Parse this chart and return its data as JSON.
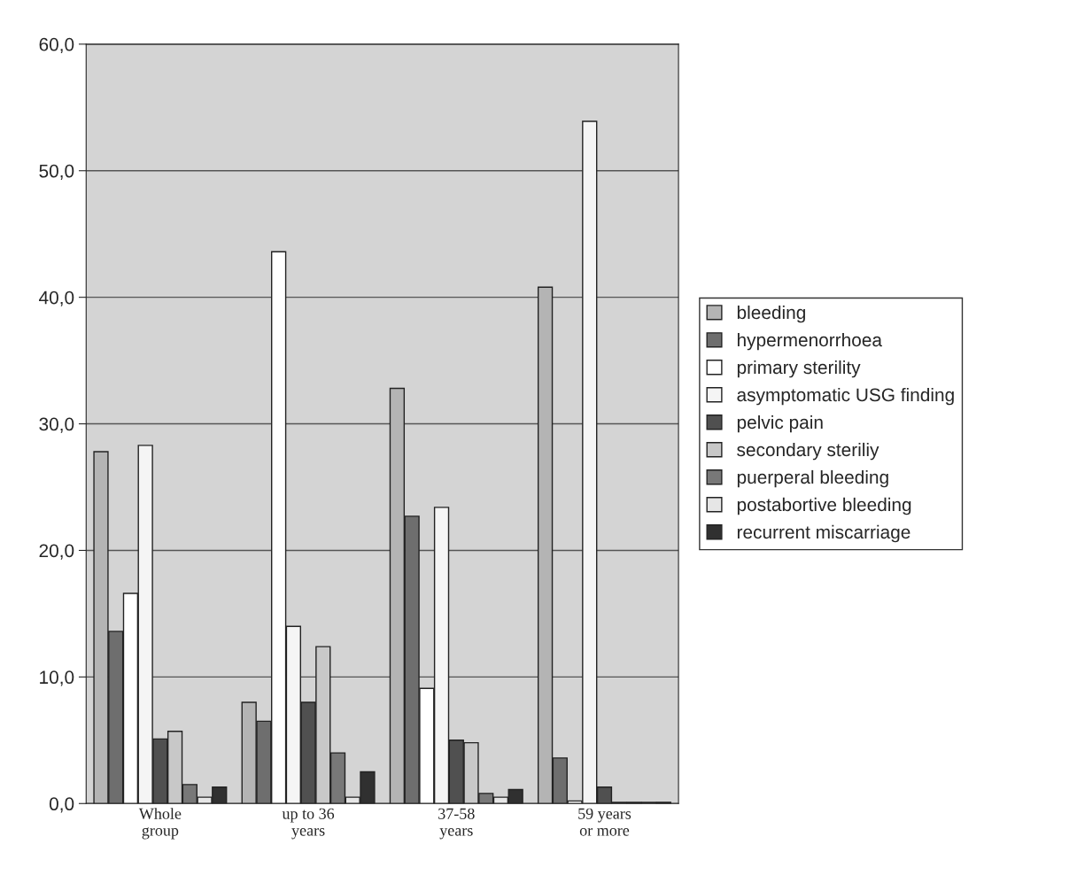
{
  "chart_data": {
    "type": "bar",
    "categories": [
      "Whole\ngroup",
      "up to 36\nyears",
      "37-58\nyears",
      "59 years\nor more"
    ],
    "series": [
      {
        "name": "bleeding",
        "color": "#b4b4b4",
        "values": [
          27.8,
          8.0,
          32.8,
          40.8
        ]
      },
      {
        "name": "hypermenorrhoea",
        "color": "#6e6e6e",
        "values": [
          13.6,
          6.5,
          22.7,
          3.6
        ]
      },
      {
        "name": "primary sterility",
        "color": "#ffffff",
        "values": [
          16.6,
          43.6,
          9.1,
          0.2
        ]
      },
      {
        "name": "asymptomatic USG finding",
        "color": "#f5f5f5",
        "values": [
          28.3,
          14.0,
          23.4,
          53.9
        ]
      },
      {
        "name": "pelvic pain",
        "color": "#505050",
        "values": [
          5.1,
          8.0,
          5.0,
          1.3
        ]
      },
      {
        "name": "secondary steriliy",
        "color": "#c8c8c8",
        "values": [
          5.7,
          12.4,
          4.8,
          0.1
        ]
      },
      {
        "name": "puerperal bleeding",
        "color": "#787878",
        "values": [
          1.5,
          4.0,
          0.8,
          0.1
        ]
      },
      {
        "name": "postabortive bleeding",
        "color": "#e6e6e6",
        "values": [
          0.5,
          0.5,
          0.5,
          0.1
        ]
      },
      {
        "name": "recurrent miscarriage",
        "color": "#303030",
        "values": [
          1.3,
          2.5,
          1.1,
          0.1
        ]
      }
    ],
    "ylim": [
      0,
      60
    ],
    "yticks": [
      {
        "value": 0,
        "label": "0,0"
      },
      {
        "value": 10,
        "label": "10,0"
      },
      {
        "value": 20,
        "label": "20,0"
      },
      {
        "value": 30,
        "label": "30,0"
      },
      {
        "value": 40,
        "label": "40,0"
      },
      {
        "value": 50,
        "label": "50,0"
      },
      {
        "value": 60,
        "label": "60,0"
      }
    ],
    "grid": "y",
    "legend": "right"
  }
}
